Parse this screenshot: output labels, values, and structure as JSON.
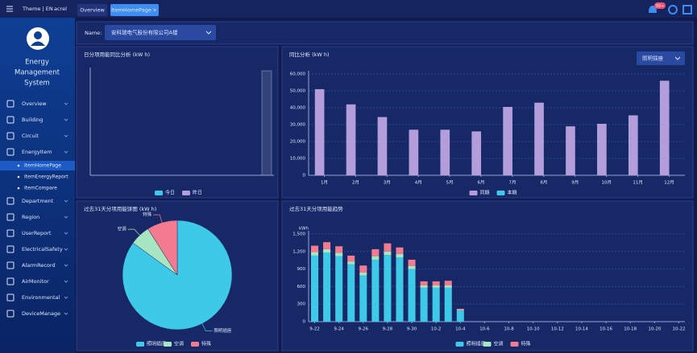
{
  "header": {
    "theme": "Theme | EN",
    "user": "acrel",
    "tabs": [
      "Overview",
      "ItemHomePage"
    ],
    "badge": "99+"
  },
  "sidebar": {
    "system_name": [
      "Energy",
      "Management",
      "System"
    ],
    "menu": [
      {
        "label": "Overview"
      },
      {
        "label": "Building"
      },
      {
        "label": "Circuit"
      },
      {
        "label": "EnergyItem",
        "children": [
          "ItemHomePage",
          "ItemEnergyReport",
          "ItemCompare"
        ]
      },
      {
        "label": "Department"
      },
      {
        "label": "Region"
      },
      {
        "label": "UserReport"
      },
      {
        "label": "ElectricalSafety"
      },
      {
        "label": "AlarmRecord"
      },
      {
        "label": "AirMonitor"
      },
      {
        "label": "Environmental"
      },
      {
        "label": "DeviceManage"
      }
    ]
  },
  "filter": {
    "label": "Name:",
    "value": "安科瑞电气股份有限公司A楼"
  },
  "chart_data": [
    {
      "type": "bar",
      "title": "日分项用能同比分析 (kW h)",
      "categories": [
        null
      ],
      "series": [
        {
          "name": "今日",
          "color": "#3ec9e8",
          "values": [
            0
          ]
        },
        {
          "name": "昨日",
          "color": "#b39ddb",
          "values": [
            0
          ]
        }
      ]
    },
    {
      "type": "bar",
      "title": "同比分析 (kW h)",
      "selector": "照明插座",
      "categories": [
        "1月",
        "2月",
        "3月",
        "4月",
        "5月",
        "6月",
        "7月",
        "8月",
        "9月",
        "10月",
        "11月",
        "12月"
      ],
      "series": [
        {
          "name": "同期",
          "color": "#b39ddb",
          "values": [
            51000,
            42000,
            34500,
            27000,
            27000,
            26000,
            40500,
            43000,
            29000,
            30500,
            35500,
            56000
          ]
        },
        {
          "name": "本期",
          "color": "#3ec9e8",
          "values": [
            0,
            0,
            0,
            0,
            0,
            0,
            0,
            0,
            0,
            0,
            0,
            0
          ]
        }
      ],
      "ylim": [
        0,
        60000
      ],
      "yticks": [
        0,
        {
          "value": 10000,
          "label": "10,000"
        },
        {
          "value": 20000,
          "label": "20,000"
        },
        {
          "value": 30000,
          "label": "30,000"
        },
        {
          "value": 40000,
          "label": "40,000"
        },
        {
          "value": 50000,
          "label": "50,000"
        },
        {
          "value": 60000,
          "label": "60,000"
        }
      ],
      "grid": true
    },
    {
      "type": "pie",
      "title": "过去31天分项用能饼图 (kW h)",
      "categories": [
        "照明插座",
        "空调",
        "特殊"
      ],
      "values": [
        85,
        6,
        9
      ],
      "colors": [
        "#3ec9e8",
        "#a8e6c1",
        "#f27b92"
      ]
    },
    {
      "type": "bar",
      "stacked": true,
      "title": "过去31天分项用能趋势",
      "y_label": "kWh",
      "categories": [
        "9-22",
        null,
        "9-24",
        null,
        "9-26",
        null,
        "9-28",
        null,
        "9-30",
        null,
        "10-2",
        null,
        "10-4",
        null,
        "10-6",
        null,
        "10-8",
        null,
        "10-10",
        null,
        "10-12",
        null,
        "10-14",
        null,
        "10-16",
        null,
        "10-18",
        null,
        "10-20",
        null,
        "10-22"
      ],
      "series": [
        {
          "name": "照明插座",
          "color": "#3ec9e8",
          "values": [
            1130,
            1180,
            1120,
            980,
            790,
            1060,
            1140,
            1100,
            900,
            580,
            580,
            580,
            190,
            0,
            0,
            0,
            0,
            0,
            0,
            0,
            0,
            0,
            0,
            0,
            0,
            0,
            0,
            0,
            0,
            0,
            0
          ]
        },
        {
          "name": "空调",
          "color": "#a8e6c1",
          "values": [
            60,
            60,
            60,
            50,
            50,
            60,
            60,
            60,
            50,
            40,
            40,
            40,
            10,
            0,
            0,
            0,
            0,
            0,
            0,
            0,
            0,
            0,
            0,
            0,
            0,
            0,
            0,
            0,
            0,
            0,
            0
          ]
        },
        {
          "name": "特殊",
          "color": "#f27b92",
          "values": [
            110,
            120,
            110,
            100,
            120,
            120,
            140,
            110,
            110,
            70,
            70,
            80,
            20,
            0,
            0,
            0,
            0,
            0,
            0,
            0,
            0,
            0,
            0,
            0,
            0,
            0,
            0,
            0,
            0,
            0,
            0
          ]
        }
      ],
      "ylim": [
        0,
        1500
      ],
      "yticks": [
        0,
        300,
        600,
        900,
        {
          "value": 1200,
          "label": "1,200"
        },
        {
          "value": 1500,
          "label": "1,500"
        }
      ],
      "grid": true
    }
  ]
}
